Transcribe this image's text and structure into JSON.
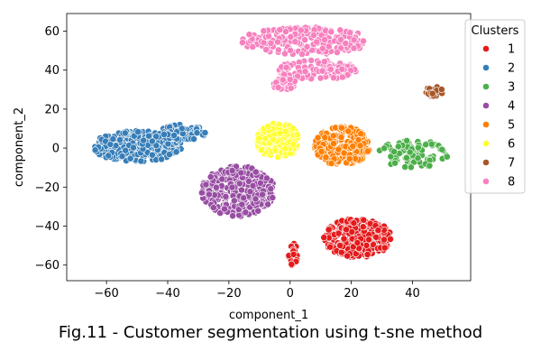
{
  "caption": "Fig.11 - Customer segmentation using t-sne method",
  "chart_data": {
    "type": "scatter",
    "xlabel": "component_1",
    "ylabel": "component_2",
    "xlim": [
      -73,
      59
    ],
    "ylim": [
      -68,
      69
    ],
    "xticks": [
      -60,
      -40,
      -20,
      0,
      20,
      40
    ],
    "yticks": [
      -60,
      -40,
      -20,
      0,
      20,
      40,
      60
    ],
    "grid": false,
    "legend": {
      "title": "Clusters",
      "placement": "right-outside-top"
    },
    "series": [
      {
        "name": "1",
        "color": "#e41a1c",
        "clusters": [
          {
            "cx": 22,
            "cy": -46,
            "rx": 11,
            "ry": 10,
            "n": 320
          },
          {
            "cx": 1,
            "cy": -54,
            "rx": 1.5,
            "ry": 7,
            "n": 30
          }
        ]
      },
      {
        "name": "2",
        "color": "#377eb8",
        "clusters": [
          {
            "cx": -50,
            "cy": 1,
            "rx": 15,
            "ry": 8,
            "n": 300
          },
          {
            "cx": -35,
            "cy": 8,
            "rx": 8,
            "ry": 4,
            "n": 80
          }
        ]
      },
      {
        "name": "3",
        "color": "#4daf4a",
        "clusters": [
          {
            "cx": 40,
            "cy": -3,
            "rx": 12,
            "ry": 7,
            "n": 90
          }
        ]
      },
      {
        "name": "4",
        "color": "#984ea3",
        "clusters": [
          {
            "cx": -17,
            "cy": -22,
            "rx": 12,
            "ry": 13,
            "n": 320
          }
        ]
      },
      {
        "name": "5",
        "color": "#ff7f00",
        "clusters": [
          {
            "cx": 17,
            "cy": 1,
            "rx": 9,
            "ry": 10,
            "n": 260
          }
        ]
      },
      {
        "name": "6",
        "color": "#ffff33",
        "clusters": [
          {
            "cx": -4,
            "cy": 4,
            "rx": 7,
            "ry": 9,
            "n": 200
          }
        ]
      },
      {
        "name": "7",
        "color": "#a65628",
        "clusters": [
          {
            "cx": 47,
            "cy": 29,
            "rx": 3,
            "ry": 2.5,
            "n": 25
          }
        ]
      },
      {
        "name": "8",
        "color": "#f781bf",
        "clusters": [
          {
            "cx": 5,
            "cy": 55,
            "rx": 21,
            "ry": 7,
            "n": 230
          },
          {
            "cx": 8,
            "cy": 40,
            "rx": 14,
            "ry": 5,
            "n": 130
          },
          {
            "cx": -2,
            "cy": 33,
            "rx": 4,
            "ry": 3,
            "n": 40
          }
        ]
      }
    ]
  }
}
